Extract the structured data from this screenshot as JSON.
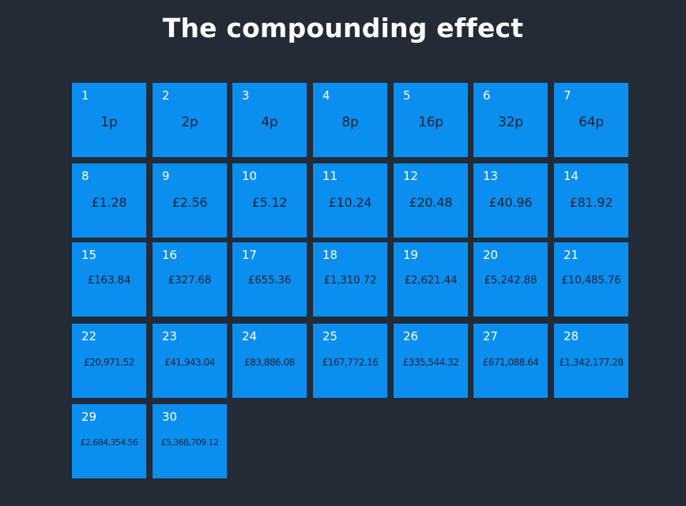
{
  "title": "The compounding effect",
  "cells": [
    {
      "day": "1",
      "amount": "1p"
    },
    {
      "day": "2",
      "amount": "2p"
    },
    {
      "day": "3",
      "amount": "4p"
    },
    {
      "day": "4",
      "amount": "8p"
    },
    {
      "day": "5",
      "amount": "16p"
    },
    {
      "day": "6",
      "amount": "32p"
    },
    {
      "day": "7",
      "amount": "64p"
    },
    {
      "day": "8",
      "amount": "£1.28"
    },
    {
      "day": "9",
      "amount": "£2.56"
    },
    {
      "day": "10",
      "amount": "£5.12"
    },
    {
      "day": "11",
      "amount": "£10.24"
    },
    {
      "day": "12",
      "amount": "£20.48"
    },
    {
      "day": "13",
      "amount": "£40.96"
    },
    {
      "day": "14",
      "amount": "£81.92"
    },
    {
      "day": "15",
      "amount": "£163.84"
    },
    {
      "day": "16",
      "amount": "£327.68"
    },
    {
      "day": "17",
      "amount": "£655.36"
    },
    {
      "day": "18",
      "amount": "£1,310.72"
    },
    {
      "day": "19",
      "amount": "£2,621.44"
    },
    {
      "day": "20",
      "amount": "£5,242.88"
    },
    {
      "day": "21",
      "amount": "£10,485.76"
    },
    {
      "day": "22",
      "amount": "£20,971.52"
    },
    {
      "day": "23",
      "amount": "£41,943.04"
    },
    {
      "day": "24",
      "amount": "£83,886.08"
    },
    {
      "day": "25",
      "amount": "£167,772.16"
    },
    {
      "day": "26",
      "amount": "£335,544.32"
    },
    {
      "day": "27",
      "amount": "£671,088.64"
    },
    {
      "day": "28",
      "amount": "£1,342,177.28"
    },
    {
      "day": "29",
      "amount": "£2,684,354.56"
    },
    {
      "day": "30",
      "amount": "£5,368,709.12"
    }
  ],
  "colors": {
    "background": "#232b37",
    "tile": "#0a8ef0",
    "day_text": "#ffffff",
    "amount_text": "#1c2430"
  }
}
